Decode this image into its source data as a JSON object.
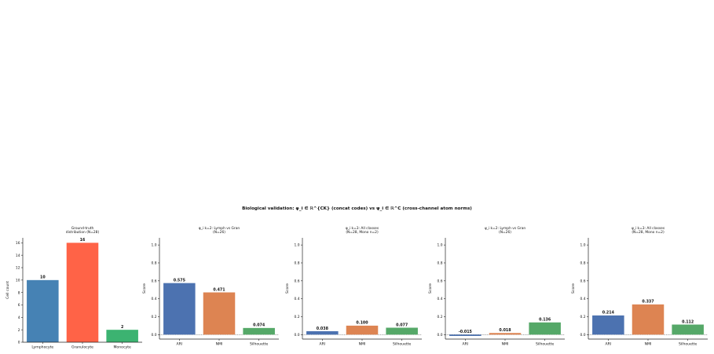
{
  "figure": {
    "title": "Biological validation: φ_i ∈ ℝ^{CK} (concat codes) vs ψ_i ∈ ℝ^C (cross-channel atom norms)"
  },
  "chart_data": [
    {
      "type": "bar",
      "title": "Ground-truth\ndistribution (N=28)",
      "categories": [
        "Lymphocyte",
        "Granulocyte",
        "Monocyte"
      ],
      "values": [
        10,
        16,
        2
      ],
      "value_labels": [
        "10",
        "16",
        "2"
      ],
      "colors": [
        "#4682b4",
        "#ff6347",
        "#3cb371"
      ],
      "ylabel": "Cell count",
      "ylim": [
        0,
        16.8
      ],
      "yticks": [
        0,
        2,
        4,
        6,
        8,
        10,
        12,
        14,
        16
      ],
      "ytick_labels": [
        "0",
        "2",
        "4",
        "6",
        "8",
        "10",
        "12",
        "14",
        "16"
      ],
      "grid": false
    },
    {
      "type": "bar",
      "title": "φ_i  k=2: Lymph vs Gran\n(N=26)",
      "categories": [
        "ARI",
        "NMI",
        "Silhouette"
      ],
      "values": [
        0.575,
        0.471,
        0.074
      ],
      "value_labels": [
        "0.575",
        "0.471",
        "0.074"
      ],
      "colors": [
        "#4c72b0",
        "#dd8452",
        "#55a868"
      ],
      "ylabel": "Score",
      "ylim": [
        -0.05,
        1.08
      ],
      "yticks": [
        0.0,
        0.2,
        0.4,
        0.6,
        0.8,
        1.0
      ],
      "ytick_labels": [
        "0.0",
        "0.2",
        "0.4",
        "0.6",
        "0.8",
        "1.0"
      ],
      "zero_line": true,
      "grid": false
    },
    {
      "type": "bar",
      "title": "φ_i  k=3: All classes\n(N=28, Mono n=2)",
      "categories": [
        "ARI",
        "NMI",
        "Silhouette"
      ],
      "values": [
        0.038,
        0.1,
        0.077
      ],
      "value_labels": [
        "0.038",
        "0.100",
        "0.077"
      ],
      "colors": [
        "#4c72b0",
        "#dd8452",
        "#55a868"
      ],
      "ylabel": "Score",
      "ylim": [
        -0.05,
        1.08
      ],
      "yticks": [
        0.0,
        0.2,
        0.4,
        0.6,
        0.8,
        1.0
      ],
      "ytick_labels": [
        "0.0",
        "0.2",
        "0.4",
        "0.6",
        "0.8",
        "1.0"
      ],
      "zero_line": true,
      "grid": false
    },
    {
      "type": "bar",
      "title": "ψ_i  k=2: Lymph vs Gran\n(N=26)",
      "categories": [
        "ARI",
        "NMI",
        "Silhouette"
      ],
      "values": [
        -0.015,
        0.018,
        0.136
      ],
      "value_labels": [
        "-0.015",
        "0.018",
        "0.136"
      ],
      "colors": [
        "#4c72b0",
        "#dd8452",
        "#55a868"
      ],
      "ylabel": "Score",
      "ylim": [
        -0.05,
        1.08
      ],
      "yticks": [
        0.0,
        0.2,
        0.4,
        0.6,
        0.8,
        1.0
      ],
      "ytick_labels": [
        "0.0",
        "0.2",
        "0.4",
        "0.6",
        "0.8",
        "1.0"
      ],
      "zero_line": true,
      "grid": false
    },
    {
      "type": "bar",
      "title": "ψ_i  k=3: All classes\n(N=28, Mono n=2)",
      "categories": [
        "ARI",
        "NMI",
        "Silhouette"
      ],
      "values": [
        0.214,
        0.337,
        0.112
      ],
      "value_labels": [
        "0.214",
        "0.337",
        "0.112"
      ],
      "colors": [
        "#4c72b0",
        "#dd8452",
        "#55a868"
      ],
      "ylabel": "Score",
      "ylim": [
        -0.05,
        1.08
      ],
      "yticks": [
        0.0,
        0.2,
        0.4,
        0.6,
        0.8,
        1.0
      ],
      "ytick_labels": [
        "0.0",
        "0.2",
        "0.4",
        "0.6",
        "0.8",
        "1.0"
      ],
      "zero_line": true,
      "grid": false
    }
  ]
}
